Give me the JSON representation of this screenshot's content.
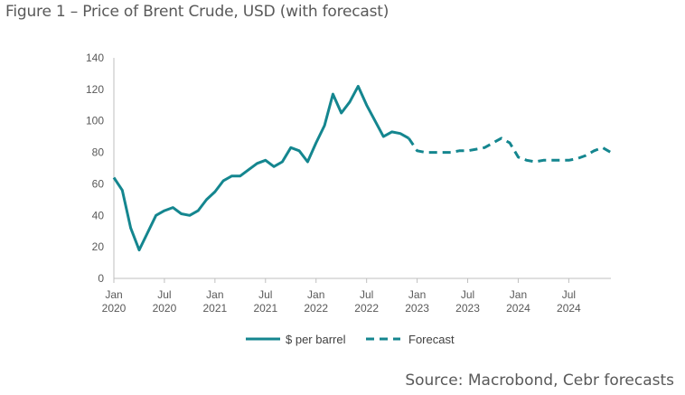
{
  "title": "Figure 1 – Price of Brent Crude, USD (with forecast)",
  "source": "Source: Macrobond, Cebr forecasts",
  "colors": {
    "series": "#14868f",
    "axis": "#bfbfbf",
    "text": "#595959"
  },
  "chart_data": {
    "type": "line",
    "title": "Figure 1 – Price of Brent Crude, USD (with forecast)",
    "xlabel": "",
    "ylabel": "",
    "ylim": [
      0,
      140
    ],
    "yticks": [
      "0",
      "20",
      "40",
      "60",
      "80",
      "100",
      "120",
      "140"
    ],
    "xticks": [
      {
        "month": "Jan",
        "year": "2020",
        "index": 0
      },
      {
        "month": "Jul",
        "year": "2020",
        "index": 6
      },
      {
        "month": "Jan",
        "year": "2021",
        "index": 12
      },
      {
        "month": "Jul",
        "year": "2021",
        "index": 18
      },
      {
        "month": "Jan",
        "year": "2022",
        "index": 24
      },
      {
        "month": "Jul",
        "year": "2022",
        "index": 30
      },
      {
        "month": "Jan",
        "year": "2023",
        "index": 36
      },
      {
        "month": "Jul",
        "year": "2023",
        "index": 42
      },
      {
        "month": "Jan",
        "year": "2024",
        "index": 48
      },
      {
        "month": "Jul",
        "year": "2024",
        "index": 54
      }
    ],
    "x_range": [
      0,
      59
    ],
    "series": [
      {
        "name": "$ per barrel",
        "style": "solid",
        "x": [
          0,
          1,
          2,
          3,
          4,
          5,
          6,
          7,
          8,
          9,
          10,
          11,
          12,
          13,
          14,
          15,
          16,
          17,
          18,
          19,
          20,
          21,
          22,
          23,
          24,
          25,
          26,
          27,
          28,
          29,
          30,
          31,
          32,
          33,
          34,
          35
        ],
        "values": [
          64,
          56,
          32,
          18,
          29,
          40,
          43,
          45,
          41,
          40,
          43,
          50,
          55,
          62,
          65,
          65,
          69,
          73,
          75,
          71,
          74,
          83,
          81,
          74,
          86,
          97,
          117,
          105,
          112,
          122,
          110,
          100,
          90,
          93,
          92,
          89
        ]
      },
      {
        "name": "Forecast",
        "style": "dashed",
        "x": [
          35,
          36,
          37,
          38,
          39,
          40,
          41,
          42,
          43,
          44,
          45,
          46,
          47,
          48,
          49,
          50,
          51,
          52,
          53,
          54,
          55,
          56,
          57,
          58,
          59
        ],
        "values": [
          89,
          81,
          80,
          80,
          80,
          80,
          81,
          81,
          82,
          83,
          86,
          89,
          86,
          77,
          75,
          74,
          75,
          75,
          75,
          75,
          76,
          78,
          81,
          83,
          80
        ]
      }
    ],
    "legend": {
      "position": "bottom"
    }
  }
}
